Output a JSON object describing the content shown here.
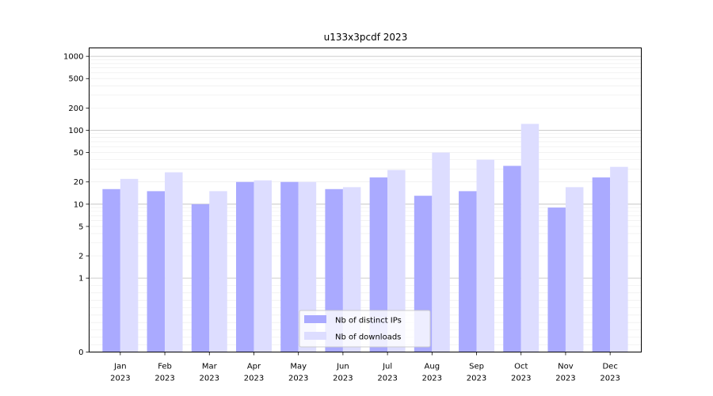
{
  "chart_data": {
    "type": "bar",
    "title": "u133x3pcdf 2023",
    "xlabel": "",
    "ylabel": "",
    "y_scale": "symlog",
    "ylim": [
      0,
      1300
    ],
    "yticks": [
      0,
      1,
      2,
      5,
      10,
      20,
      50,
      100,
      200,
      500,
      1000
    ],
    "grid": true,
    "legend_position": "lower-center",
    "categories": [
      [
        "Jan",
        "2023"
      ],
      [
        "Feb",
        "2023"
      ],
      [
        "Mar",
        "2023"
      ],
      [
        "Apr",
        "2023"
      ],
      [
        "May",
        "2023"
      ],
      [
        "Jun",
        "2023"
      ],
      [
        "Jul",
        "2023"
      ],
      [
        "Aug",
        "2023"
      ],
      [
        "Sep",
        "2023"
      ],
      [
        "Oct",
        "2023"
      ],
      [
        "Nov",
        "2023"
      ],
      [
        "Dec",
        "2023"
      ]
    ],
    "series": [
      {
        "name": "Nb of distinct IPs",
        "color": "#aaaaff",
        "values": [
          16,
          15,
          10,
          20,
          20,
          16,
          23,
          13,
          15,
          33,
          9,
          23
        ]
      },
      {
        "name": "Nb of downloads",
        "color": "#ddddff",
        "values": [
          22,
          27,
          15,
          21,
          20,
          17,
          29,
          50,
          40,
          122,
          17,
          32
        ]
      }
    ]
  }
}
